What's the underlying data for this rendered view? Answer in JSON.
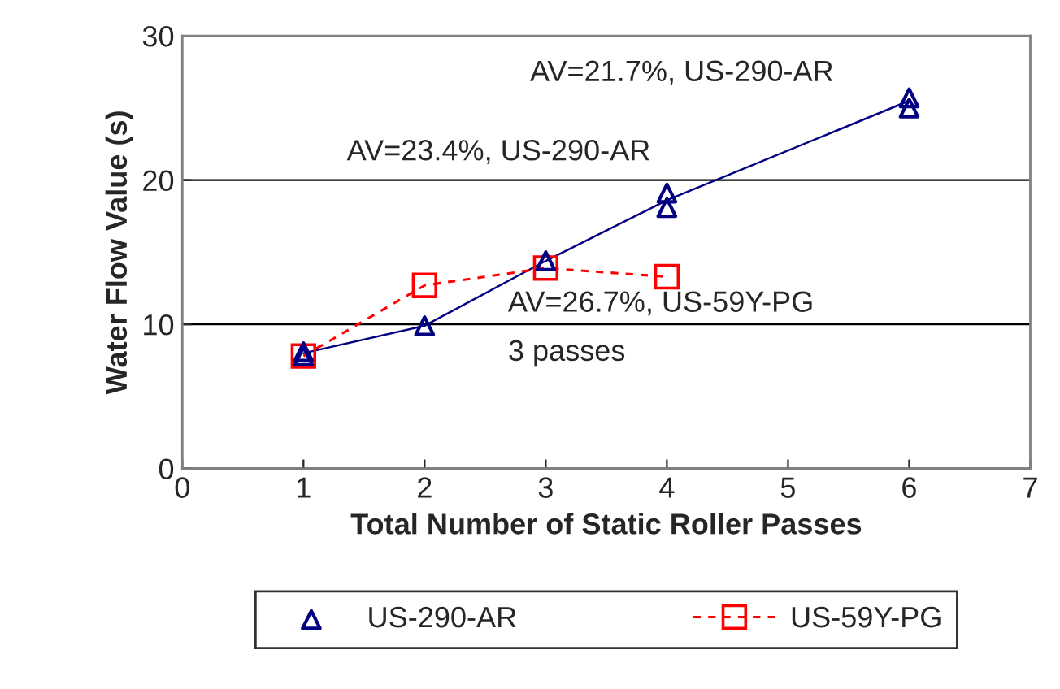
{
  "chart_data": {
    "type": "scatter",
    "xlabel": "Total Number of Static Roller Passes",
    "ylabel": "Water Flow Value (s)",
    "xlim": [
      0,
      7
    ],
    "xticks": [
      0,
      1,
      2,
      3,
      4,
      5,
      6,
      7
    ],
    "ylim": [
      0,
      30
    ],
    "yticks": [
      0,
      10,
      20,
      30
    ],
    "grid": "y",
    "legend": "bottom",
    "series": [
      {
        "name": "US-290-AR",
        "marker": "triangle",
        "color": "#000080",
        "x": [
          1,
          1,
          2,
          3,
          4,
          4,
          6,
          6
        ],
        "values": [
          8.1,
          7.8,
          9.9,
          14.4,
          19.1,
          18.1,
          25.7,
          25.0
        ]
      },
      {
        "type": "line",
        "marker": "none",
        "line_style": "solid",
        "color": "#000080",
        "x": [
          1,
          2,
          3,
          4,
          6
        ],
        "values": [
          8.0,
          9.9,
          14.4,
          18.6,
          25.5
        ]
      },
      {
        "name": "US-59Y-PG",
        "type": "line",
        "marker": "square",
        "line_style": "dashed",
        "color": "#ff0000",
        "x": [
          1,
          2,
          3,
          4
        ],
        "values": [
          7.8,
          12.7,
          13.9,
          13.3
        ]
      }
    ],
    "annotations": [
      "AV=21.7%, US-290-AR",
      "AV=23.4%, US-290-AR",
      "AV=26.7%, US-59Y-PG",
      "3 passes"
    ]
  }
}
